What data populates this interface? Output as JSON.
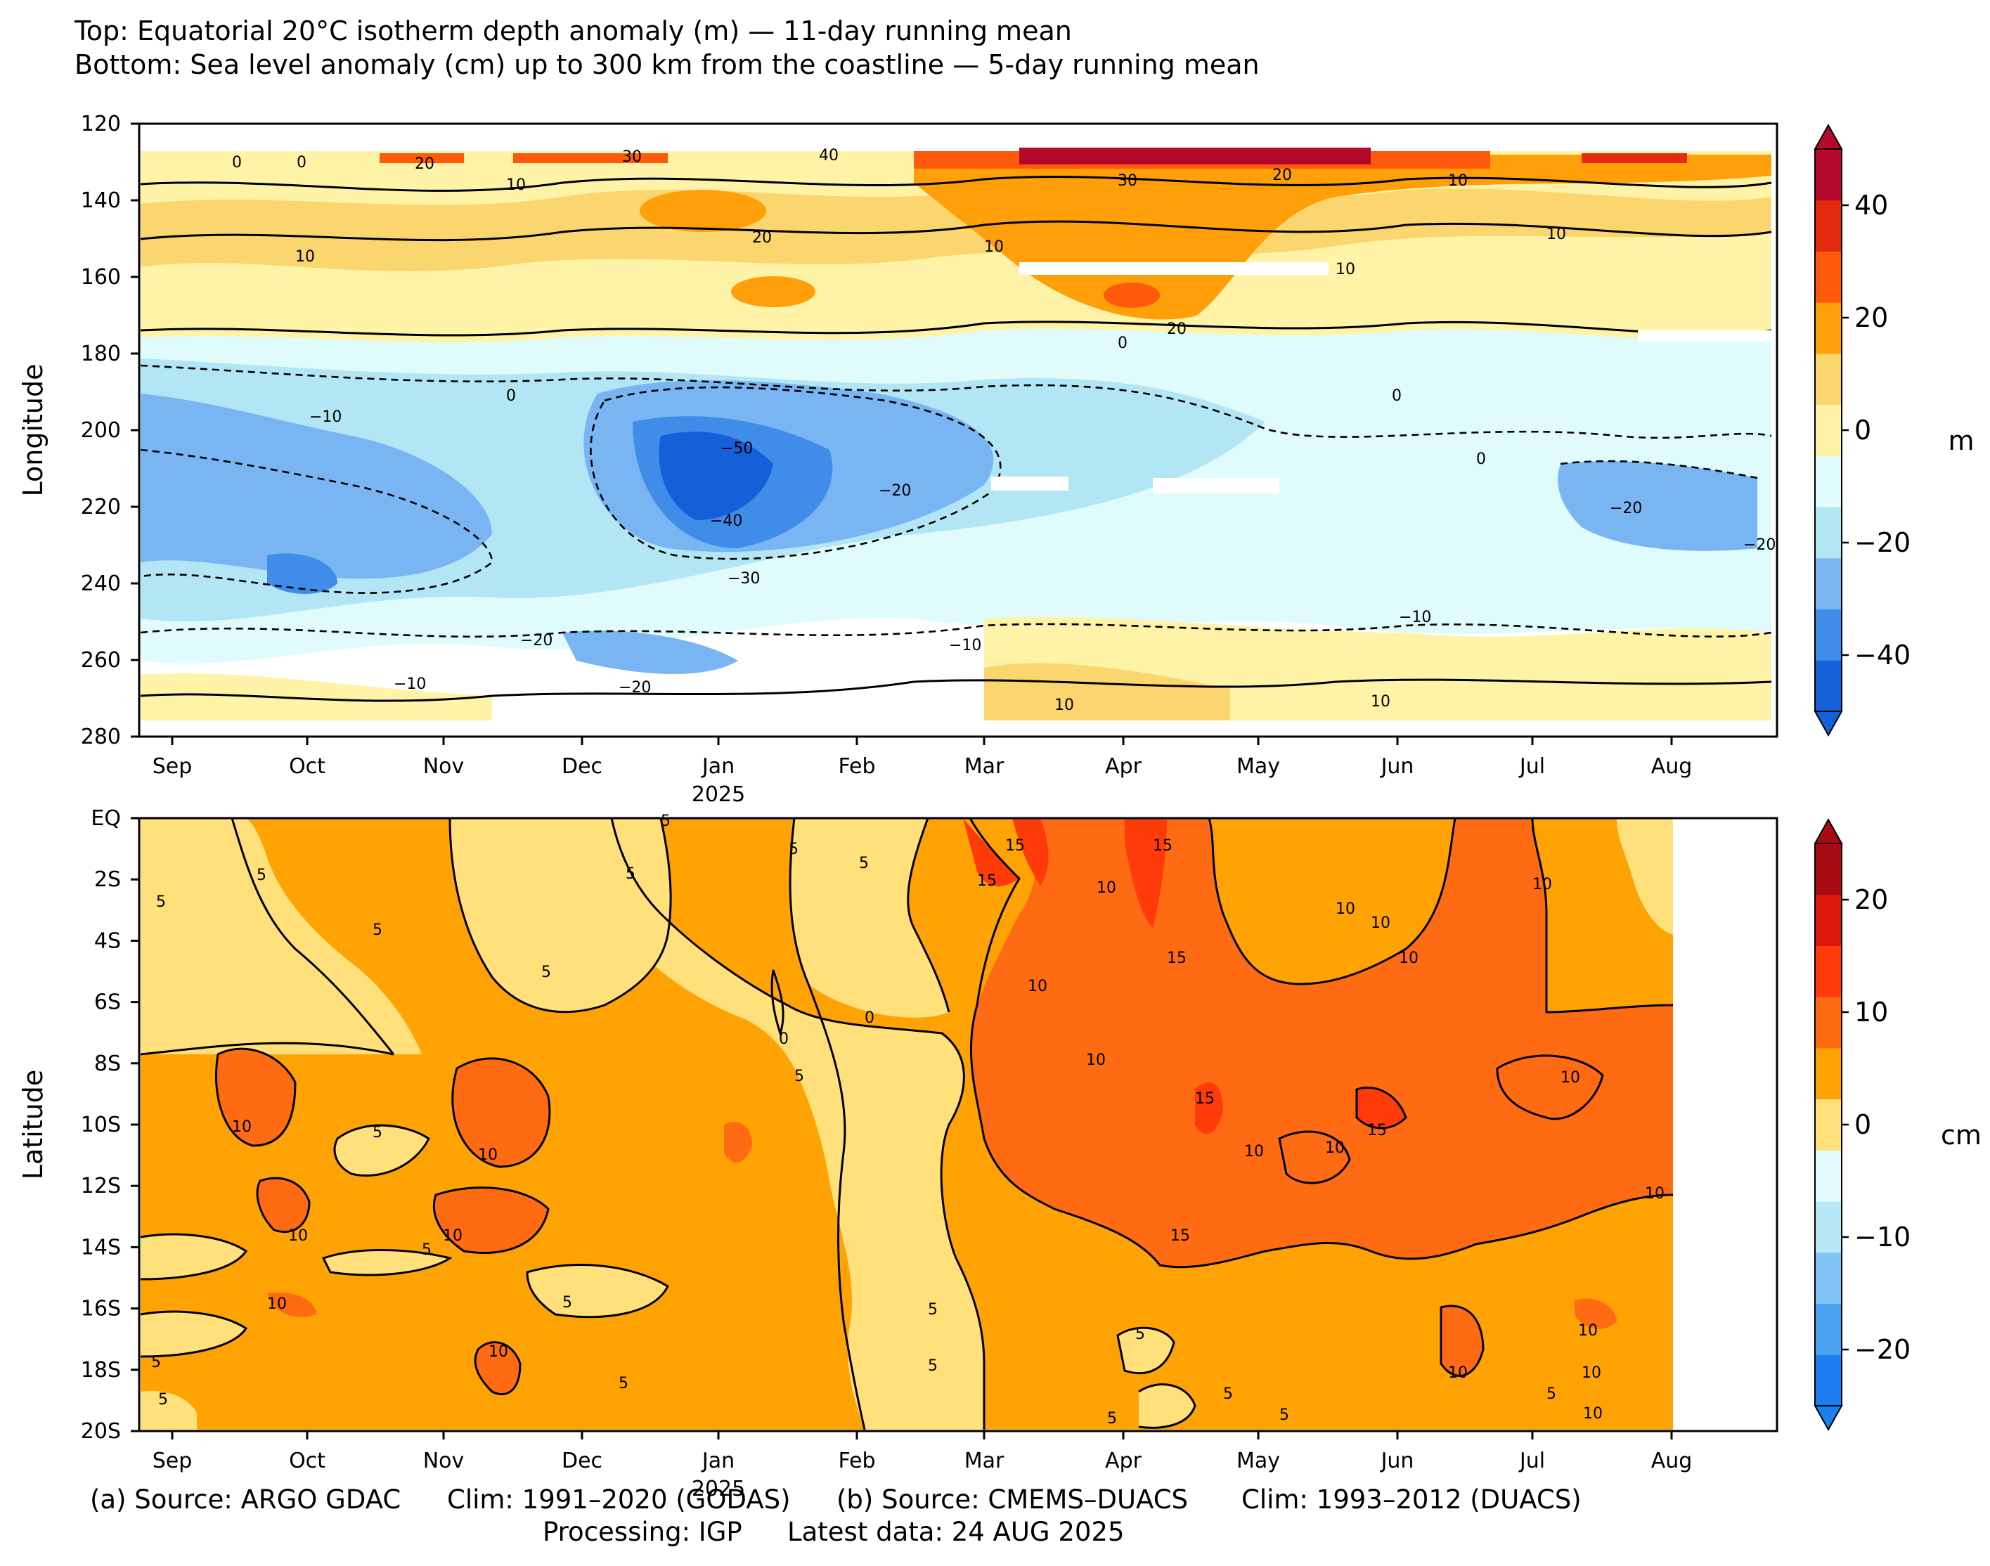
{
  "title": {
    "line1": "Top: Equatorial 20°C isotherm depth anomaly (m) — 11-day running mean",
    "line2": "Bottom: Sea level anomaly (cm) up to 300 km from the coastline — 5-day running mean"
  },
  "footer": {
    "a_source": "(a) Source: ARGO GDAC",
    "a_clim": "Clim: 1991–2020 (GODAS)",
    "b_source": "(b) Source: CMEMS–DUACS",
    "b_clim": "Clim: 1993–2012 (DUACS)",
    "processing": "Processing: IGP",
    "latest": "Latest data: 24 AUG 2025"
  },
  "chart_data": [
    {
      "type": "heatmap",
      "panel": "top",
      "ylabel": "Longitude",
      "colorbar_label": "m",
      "ylim": [
        280,
        120
      ],
      "y_ticks": [
        "120",
        "140",
        "160",
        "180",
        "200",
        "220",
        "240",
        "260",
        "280"
      ],
      "x_ticks": [
        "Sep",
        "Oct",
        "Nov",
        "Dec",
        "Jan",
        "Feb",
        "Mar",
        "Apr",
        "May",
        "Jun",
        "Jul",
        "Aug"
      ],
      "x_year_label": "2025",
      "colorbar_ticks": [
        "40",
        "20",
        "0",
        "−20",
        "−40"
      ],
      "colorbar_levels": [
        -50,
        -40,
        -30,
        -20,
        -10,
        0,
        10,
        20,
        30,
        40,
        50
      ],
      "colorbar_colors": [
        "#1560d8",
        "#3f8de8",
        "#78b5f2",
        "#b2e6f5",
        "#dffbfb",
        "#fff3a8",
        "#fbd56e",
        "#ff9f0a",
        "#ff5a0c",
        "#e52b0f",
        "#b4092a"
      ],
      "contour_labels": [
        "0",
        "10",
        "20",
        "30",
        "40",
        "−10",
        "−20",
        "−30",
        "−40",
        "−50"
      ],
      "lon_bands": [
        {
          "lon": [
            128,
            132
          ],
          "value": 30
        },
        {
          "lon": [
            132,
            150
          ],
          "value": 10
        },
        {
          "lon": [
            150,
            165
          ],
          "value": 10
        },
        {
          "lon": [
            165,
            180
          ],
          "value": 5
        },
        {
          "lon": [
            180,
            195
          ],
          "value": -10
        },
        {
          "lon": [
            195,
            235
          ],
          "value": -20
        },
        {
          "lon": [
            235,
            260
          ],
          "value": -10
        },
        {
          "lon": [
            260,
            276
          ],
          "value": 0
        }
      ]
    },
    {
      "type": "heatmap",
      "panel": "bottom",
      "ylabel": "Latitude",
      "colorbar_label": "cm",
      "y_ticks": [
        "EQ",
        "2S",
        "4S",
        "6S",
        "8S",
        "10S",
        "12S",
        "14S",
        "16S",
        "18S",
        "20S"
      ],
      "x_ticks": [
        "Sep",
        "Oct",
        "Nov",
        "Dec",
        "Jan",
        "Feb",
        "Mar",
        "Apr",
        "May",
        "Jun",
        "Jul",
        "Aug"
      ],
      "x_year_label": "2025",
      "colorbar_ticks": [
        "20",
        "10",
        "0",
        "−10",
        "−20"
      ],
      "colorbar_levels": [
        -25,
        -20,
        -15,
        -10,
        -5,
        0,
        5,
        10,
        15,
        20,
        25
      ],
      "colorbar_colors": [
        "#1c7ef0",
        "#4ba2f3",
        "#80c4f7",
        "#b6e8f8",
        "#e2fbfd",
        "#ffe07a",
        "#ffa305",
        "#ff6b12",
        "#ff3b0a",
        "#dc1808",
        "#a80a14"
      ],
      "contour_labels": [
        "0",
        "5",
        "10",
        "15"
      ],
      "time_bands": [
        {
          "period": [
            "Sep",
            "mid-Jan"
          ],
          "value": 5
        },
        {
          "period": [
            "mid-Jan",
            "late-Feb"
          ],
          "value": 3
        },
        {
          "period": [
            "Mar",
            "Aug"
          ],
          "value": 10
        }
      ]
    }
  ]
}
